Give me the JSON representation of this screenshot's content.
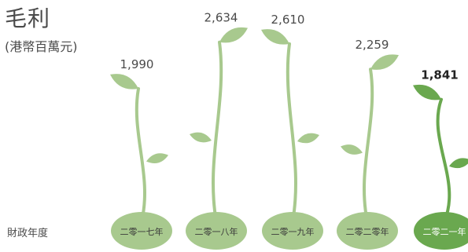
{
  "header": {
    "title": "毛利",
    "subtitle": "(港幣百萬元)"
  },
  "axis": {
    "x_title": "財政年度"
  },
  "colors": {
    "light_green": "#a8c98e",
    "dark_green": "#6aa84f",
    "text_gray": "#4a4a4a"
  },
  "chart_data": {
    "type": "bar",
    "title": "毛利",
    "subtitle": "(港幣百萬元)",
    "xlabel": "財政年度",
    "ylabel": "",
    "categories": [
      "二零一七年",
      "二零一八年",
      "二零一九年",
      "二零二零年",
      "二零二一年"
    ],
    "values": [
      1990,
      2634,
      2610,
      2259,
      1841
    ],
    "value_labels": [
      "1,990",
      "2,634",
      "2,610",
      "2,259",
      "1,841"
    ],
    "highlight_index": 4
  }
}
